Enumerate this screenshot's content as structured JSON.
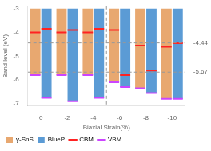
{
  "chart_data": {
    "type": "bar",
    "xlabel": "Biaxial Strain(%)",
    "ylabel": "Band level (eV)",
    "categories": [
      "0",
      "-2",
      "-4",
      "-6",
      "-8",
      "-10"
    ],
    "bar_top": -3.0,
    "series": [
      {
        "name": "γ-SnS",
        "color": "#E8A870",
        "values": [
          -5.8,
          -5.8,
          -5.8,
          -6.1,
          -6.35,
          -6.8
        ],
        "cbm": [
          -4.0,
          -4.0,
          -4.0,
          -3.9,
          -4.55,
          -4.6
        ]
      },
      {
        "name": "BlueP",
        "color": "#5B9BD5",
        "values": [
          -6.75,
          -6.9,
          -6.75,
          -6.3,
          -6.55,
          -6.8
        ],
        "cbm": [
          -3.85,
          -3.9,
          -3.85,
          -5.8,
          -5.6,
          -4.45
        ]
      }
    ],
    "level_lines": [
      {
        "name": "CBM",
        "color": "#FF2222"
      },
      {
        "name": "VBM",
        "color": "#CC44FF"
      }
    ],
    "hlines": [
      -4.44,
      -5.67
    ],
    "divider_after": "-4",
    "ylim": [
      -7.1,
      -2.9
    ],
    "yticks": [
      -7,
      -6,
      -5,
      -4,
      -3
    ],
    "y2lim": [
      -7.1,
      -2.9
    ],
    "y2ticks": [
      -4.44,
      -5.67
    ],
    "grid": false,
    "legend": "lower left"
  }
}
